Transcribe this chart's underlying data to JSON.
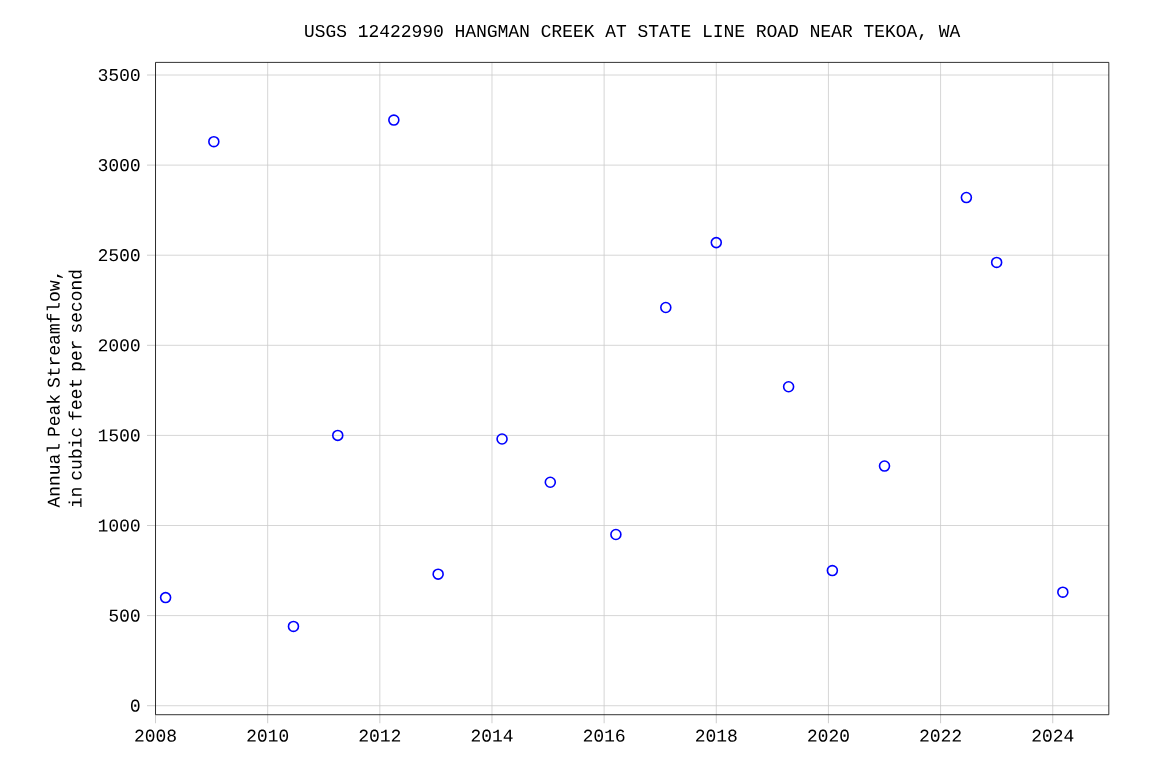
{
  "chart_data": {
    "type": "scatter",
    "title": "USGS 12422990 HANGMAN CREEK AT STATE LINE ROAD NEAR TEKOA, WA",
    "ylabel": "Annual Peak Streamflow, in cubic feet per second",
    "x": [
      2008.18,
      2009.04,
      2010.46,
      2011.25,
      2012.25,
      2013.04,
      2014.18,
      2015.04,
      2016.21,
      2017.1,
      2018.0,
      2019.29,
      2020.07,
      2021.0,
      2022.46,
      2023.0,
      2024.18
    ],
    "series": [
      {
        "color": "#0000ff",
        "values": [
          600,
          3130,
          440,
          1500,
          3250,
          730,
          1480,
          1240,
          950,
          2210,
          2570,
          1770,
          750,
          1330,
          2820,
          2460,
          630
        ]
      }
    ],
    "xlim": [
      2008,
      2025
    ],
    "xticks": [
      2008,
      2010,
      2012,
      2014,
      2016,
      2018,
      2020,
      2022,
      2024
    ],
    "ylim": [
      -50,
      3570
    ],
    "yticks": [
      0,
      500,
      1000,
      1500,
      2000,
      2500,
      3000,
      3500
    ],
    "grid": true,
    "marker": "circle"
  }
}
